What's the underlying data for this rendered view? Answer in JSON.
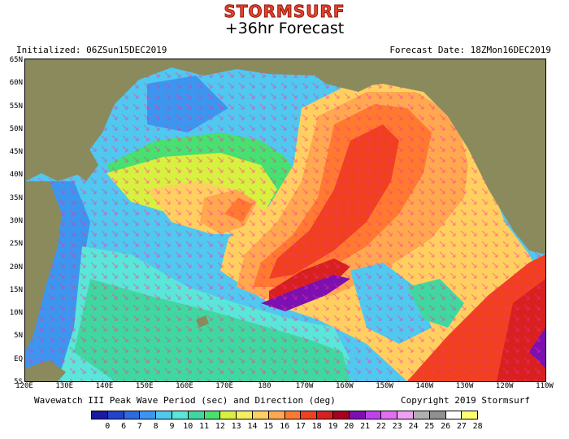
{
  "header": {
    "brand": "STORMSURF",
    "forecast_hour": "+36hr Forecast",
    "initialized": "Initialized: 06ZSun15DEC2019",
    "forecast_date": "Forecast Date: 18ZMon16DEC2019"
  },
  "footer": {
    "description": "Wavewatch III Peak Wave Period (sec) and Direction (deg)",
    "copyright": "Copyright 2019 Stormsurf"
  },
  "map": {
    "lat_labels": [
      "65N",
      "60N",
      "55N",
      "50N",
      "45N",
      "40N",
      "35N",
      "30N",
      "25N",
      "20N",
      "15N",
      "10N",
      "5N",
      "EQ",
      "5S"
    ],
    "lon_labels": [
      "120E",
      "130E",
      "140E",
      "150E",
      "160E",
      "170E",
      "180",
      "170W",
      "160W",
      "150W",
      "140W",
      "130W",
      "120W",
      "110W"
    ]
  },
  "legend": {
    "values": [
      "0",
      "6",
      "7",
      "8",
      "9",
      "10",
      "11",
      "12",
      "13",
      "14",
      "15",
      "16",
      "17",
      "18",
      "19",
      "20",
      "21",
      "22",
      "23",
      "24",
      "25",
      "26",
      "27",
      "28"
    ],
    "colors": [
      "#1a1aa0",
      "#2244cc",
      "#2e6be0",
      "#3c96f0",
      "#50c8f0",
      "#5ae6d8",
      "#40d8a0",
      "#48e070",
      "#d8f040",
      "#f4f060",
      "#ffd060",
      "#ffa850",
      "#ff7a30",
      "#f04020",
      "#d82020",
      "#a80020",
      "#7c10b0",
      "#c040f0",
      "#e070f0",
      "#f0a0f0",
      "#b0b0b0",
      "#909090",
      "#ffffff",
      "#ffff70"
    ]
  }
}
